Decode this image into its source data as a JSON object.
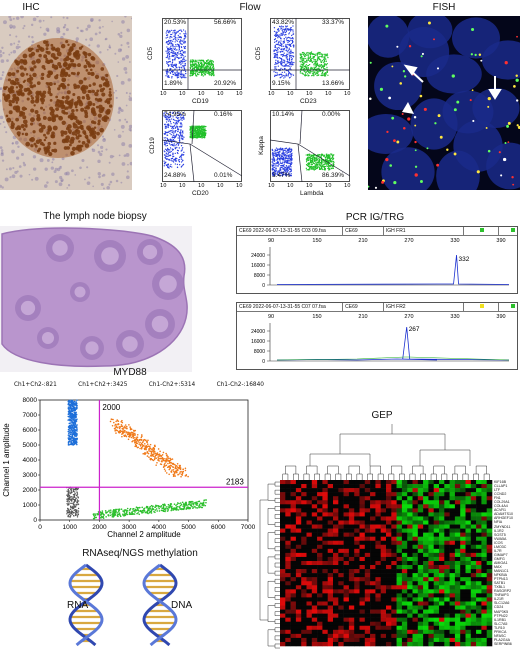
{
  "titles": {
    "ihc": "IHC",
    "flow": "Flow",
    "fish": "FISH",
    "biopsy": "The lymph node biopsy",
    "pcr": "PCR IG/TRG",
    "myd88": "MYD88",
    "gep": "GEP",
    "rnaseq": "RNAseq/NGS methylation"
  },
  "flow": {
    "plots": [
      {
        "xlabel": "CD19",
        "ylabel": "CD5",
        "tl": "20.53%",
        "tr": "56.66%",
        "bl": "1.89%",
        "br": "20.92%"
      },
      {
        "xlabel": "CD23",
        "ylabel": "CD5",
        "tl": "43.82%",
        "tr": "33.37%",
        "bl": "9.15%",
        "br": "13.66%"
      },
      {
        "xlabel": "CD20",
        "ylabel": "CD19",
        "tl": "74.95%",
        "tr": "0.16%",
        "bl": "24.88%",
        "br": "0.01%"
      },
      {
        "xlabel": "Lambda",
        "ylabel": "Kappa",
        "tl": "10.14%",
        "tr": "0.00%",
        "bl": "3.47%",
        "br": "86.39%"
      }
    ],
    "tick_labels": [
      "10",
      "10",
      "10",
      "10",
      "10"
    ]
  },
  "pcr": {
    "traces": [
      {
        "file": "CE69 2022-06-07-13-31-55 C03 09.fsa",
        "run": "CE69",
        "target": "IGH FR1",
        "peak": "332",
        "x_ticks": [
          "90",
          "150",
          "210",
          "270",
          "330",
          "390"
        ],
        "y_ticks": [
          "24000",
          "16000",
          "8000",
          "0"
        ]
      },
      {
        "file": "CE69 2022-06-07-13-31-55 C07 07.fsa",
        "run": "CE69",
        "target": "IGH FR2",
        "peak": "267",
        "x_ticks": [
          "90",
          "150",
          "210",
          "270",
          "330",
          "390"
        ],
        "y_ticks": [
          "24000",
          "16000",
          "8000",
          "0"
        ]
      }
    ]
  },
  "myd88": {
    "counts": [
      "Ch1+Ch2-:821",
      "Ch1+Ch2+:3425",
      "Ch1-Ch2+:5314",
      "Ch1-Ch2-:16840"
    ],
    "xlabel": "Channel 2 amplitude",
    "ylabel": "Channel 1 amplitude",
    "x_ticks": [
      "0",
      "1000",
      "2000",
      "3000",
      "4000",
      "5000",
      "6000",
      "7000"
    ],
    "y_ticks": [
      "8000",
      "7000",
      "6000",
      "5000",
      "4000",
      "3000",
      "2000",
      "1000",
      "0"
    ],
    "x_threshold": "2000",
    "y_threshold": "2183"
  },
  "gep": {
    "genes": [
      "KIF16B",
      "CLLAP1",
      "LTF",
      "CCND2",
      "FN1",
      "COL29A1",
      "COL4A4",
      "ACVR1",
      "ADAMTS10",
      "ARHGEF10",
      "NFIA",
      "ZMYND11",
      "IL1R2",
      "SGST5",
      "VWA5A",
      "ICOS",
      "LMO3C",
      "IL7R",
      "GIMAP7",
      "GMFG",
      "AMIGA1",
      "MAX",
      "MAN1C1",
      "NFKBIA",
      "PTPN13",
      "SATB1",
      "TXBL1",
      "RASGRP2",
      "TNFAIP3",
      "IL21R",
      "SLC12A6",
      "CD24",
      "MAP3K5",
      "PTPN22",
      "IL1RB1",
      "SLC7A5",
      "TLR10",
      "PRKCA",
      "NFASC",
      "PLA2G4A",
      "SERPINB6"
    ]
  },
  "dna_labels": {
    "left": "RNA",
    "right": "DNA"
  },
  "colors": {
    "accent": "#cc22cc",
    "flow_blue": "#2a3fe0",
    "flow_green": "#22c02a",
    "ddpcr_blue": "#1e6fd9",
    "ddpcr_orange": "#f07a1a",
    "ddpcr_green": "#2ec02e",
    "ihc_brown": "#7a3d12",
    "he_purple": "#b58bc9",
    "fish_blue": "#1a2a8a"
  }
}
